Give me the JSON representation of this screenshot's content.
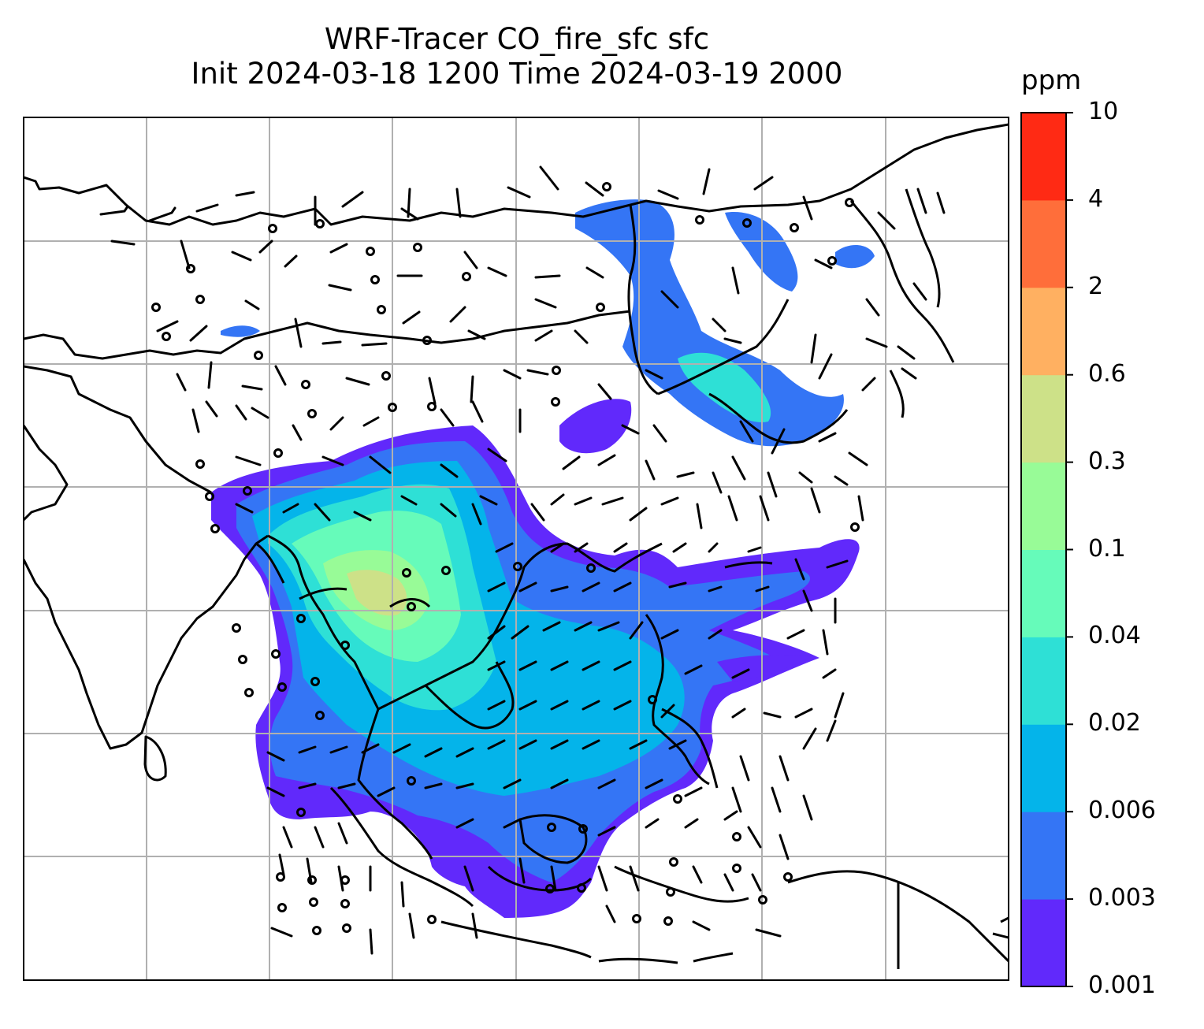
{
  "title": {
    "line1": "WRF-Tracer CO_fire_sfc sfc",
    "line2": "Init 2024-03-18 1200 Time 2024-03-19 2000"
  },
  "colorbar": {
    "unit": "ppm",
    "labels": [
      "0.001",
      "0.003",
      "0.006",
      "0.02",
      "0.04",
      "0.1",
      "0.3",
      "0.6",
      "2",
      "4",
      "10"
    ],
    "colors": [
      "#6129fb",
      "#3475f5",
      "#04b4ea",
      "#2ee0d6",
      "#66fbba",
      "#98fb97",
      "#cde188",
      "#ffb061",
      "#ff6e3a",
      "#ff2a14"
    ]
  },
  "map": {
    "gridlines": true,
    "coastline_color": "#000000",
    "wind_barbs": true
  }
}
